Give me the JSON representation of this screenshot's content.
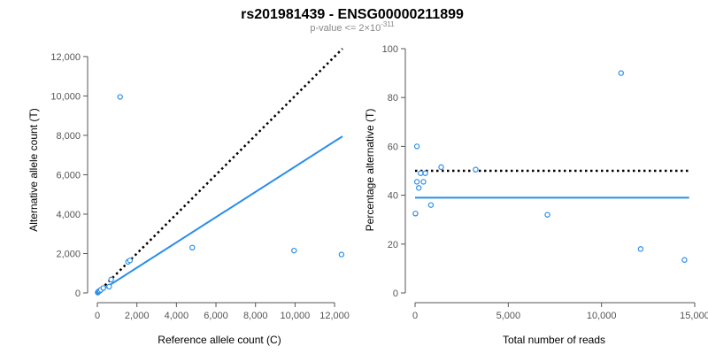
{
  "title": "rs201981439 - ENSG00000211899",
  "subtitle": {
    "text": "p-value <= 2×10",
    "exponent": "-311"
  },
  "colors": {
    "points": "#2a8ee8",
    "fit": "#2a8ee8",
    "reference": "#000000",
    "axis": "#555555"
  },
  "chart_data": [
    {
      "type": "scatter",
      "xlabel": "Reference allele count (C)",
      "ylabel": "Alternative allele count (T)",
      "xlim": [
        0,
        12400
      ],
      "ylim": [
        0,
        12400
      ],
      "xticks": [
        0,
        2000,
        4000,
        6000,
        8000,
        10000,
        12000
      ],
      "xtick_labels": [
        "0",
        "2,000",
        "4,000",
        "6,000",
        "8,000",
        "10,000",
        "12,000"
      ],
      "yticks": [
        0,
        2000,
        4000,
        6000,
        8000,
        10000,
        12000
      ],
      "ytick_labels": [
        "0",
        "2,000",
        "4,000",
        "6,000",
        "8,000",
        "10,000",
        "12,000"
      ],
      "points": [
        {
          "x": 20,
          "y": 20
        },
        {
          "x": 50,
          "y": 60
        },
        {
          "x": 80,
          "y": 90
        },
        {
          "x": 120,
          "y": 110
        },
        {
          "x": 180,
          "y": 160
        },
        {
          "x": 300,
          "y": 250
        },
        {
          "x": 600,
          "y": 320
        },
        {
          "x": 700,
          "y": 680
        },
        {
          "x": 1150,
          "y": 9950
        },
        {
          "x": 1550,
          "y": 1580
        },
        {
          "x": 1650,
          "y": 1650
        },
        {
          "x": 4800,
          "y": 2300
        },
        {
          "x": 9950,
          "y": 2150
        },
        {
          "x": 12350,
          "y": 1950
        }
      ],
      "reference_line": {
        "style": "dotted",
        "x": [
          0,
          12400
        ],
        "y": [
          0,
          12400
        ]
      },
      "fit_line": {
        "style": "solid",
        "x": [
          0,
          12400
        ],
        "y": [
          0,
          7950
        ]
      },
      "grid": false
    },
    {
      "type": "scatter",
      "xlabel": "Total number of reads",
      "ylabel": "Percentage alternative (T)",
      "xlim": [
        0,
        15000
      ],
      "ylim": [
        0,
        100
      ],
      "xticks": [
        0,
        5000,
        10000,
        15000
      ],
      "xtick_labels": [
        "0",
        "5,000",
        "10,000",
        "15,000"
      ],
      "yticks": [
        0,
        20,
        40,
        60,
        80,
        100
      ],
      "ytick_labels": [
        "0",
        "20",
        "40",
        "60",
        "80",
        "100"
      ],
      "points": [
        {
          "x": 20,
          "y": 32.5
        },
        {
          "x": 100,
          "y": 60
        },
        {
          "x": 100,
          "y": 45.5
        },
        {
          "x": 200,
          "y": 43
        },
        {
          "x": 300,
          "y": 49
        },
        {
          "x": 450,
          "y": 45.5
        },
        {
          "x": 550,
          "y": 49
        },
        {
          "x": 850,
          "y": 36
        },
        {
          "x": 1400,
          "y": 51.5
        },
        {
          "x": 3250,
          "y": 50.5
        },
        {
          "x": 7100,
          "y": 32
        },
        {
          "x": 11050,
          "y": 90
        },
        {
          "x": 12100,
          "y": 18
        },
        {
          "x": 14450,
          "y": 13.5
        }
      ],
      "reference_line": {
        "style": "dotted",
        "x": [
          0,
          14700
        ],
        "y": [
          50,
          50
        ]
      },
      "fit_line": {
        "style": "solid",
        "x": [
          0,
          14700
        ],
        "y": [
          39,
          39
        ]
      },
      "grid": false
    }
  ]
}
